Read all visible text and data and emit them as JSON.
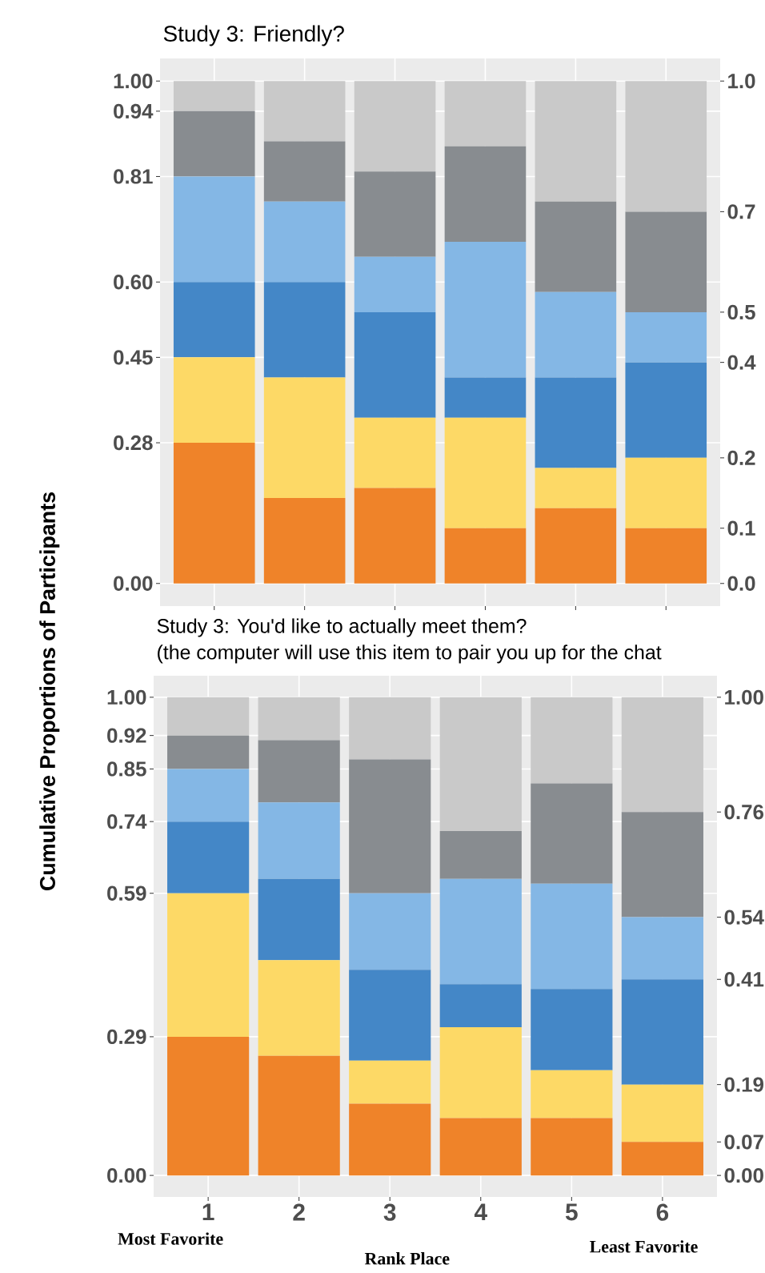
{
  "chart_data": [
    {
      "type": "bar",
      "stacked": true,
      "title": "Study 3: Friendly?",
      "categories": [
        "1",
        "2",
        "3",
        "4",
        "5",
        "6"
      ],
      "tick_labels": "y",
      "grid": true,
      "ylim": [
        -0.045,
        1.045
      ],
      "yticks": [
        {
          "value": 0,
          "label": "0.00"
        },
        {
          "value": 0.28,
          "label": "0.28"
        },
        {
          "value": 0.45,
          "label": "0.45"
        },
        {
          "value": 0.6,
          "label": "0.60"
        },
        {
          "value": 0.81,
          "label": "0.81"
        },
        {
          "value": 0.94,
          "label": "0.94"
        },
        {
          "value": 1,
          "label": "1.00"
        }
      ],
      "y2lim": [
        -0.045,
        1.045
      ],
      "y2ticks": [
        {
          "value": 0,
          "label": "0.0"
        },
        {
          "value": 0.11,
          "label": "0.1"
        },
        {
          "value": 0.25,
          "label": "0.2"
        },
        {
          "value": 0.44,
          "label": "0.4"
        },
        {
          "value": 0.54,
          "label": "0.5"
        },
        {
          "value": 0.74,
          "label": "0.7"
        },
        {
          "value": 1,
          "label": "1.0"
        }
      ],
      "series": [
        {
          "color": "#ef8329",
          "values": [
            0.28,
            0.17,
            0.19,
            0.11,
            0.15,
            0.11
          ]
        },
        {
          "color": "#fdd966",
          "values": [
            0.17,
            0.24,
            0.14,
            0.22,
            0.08,
            0.14
          ]
        },
        {
          "color": "#4487c7",
          "values": [
            0.15,
            0.19,
            0.21,
            0.08,
            0.18,
            0.19
          ]
        },
        {
          "color": "#84b7e5",
          "values": [
            0.21,
            0.16,
            0.11,
            0.27,
            0.17,
            0.1
          ]
        },
        {
          "color": "#888c90",
          "values": [
            0.13,
            0.12,
            0.17,
            0.19,
            0.18,
            0.2
          ]
        },
        {
          "color": "#c9c9c9",
          "values": [
            0.06,
            0.12,
            0.18,
            0.13,
            0.24,
            0.26
          ]
        }
      ]
    },
    {
      "type": "bar",
      "stacked": true,
      "title": "Study 3: You'd like to actually meet them?",
      "subtitle": "(the computer will use this item to pair you up for the chat",
      "xlabel": "Rank Place",
      "ylabel": "Cumulative Proportions of Participants",
      "annotations": [
        "Most Favorite",
        "Least Favorite"
      ],
      "categories": [
        "1",
        "2",
        "3",
        "4",
        "5",
        "6"
      ],
      "grid": true,
      "ylim": [
        -0.045,
        1.045
      ],
      "yticks": [
        {
          "value": 0,
          "label": "0.00"
        },
        {
          "value": 0.29,
          "label": "0.29"
        },
        {
          "value": 0.59,
          "label": "0.59"
        },
        {
          "value": 0.74,
          "label": "0.74"
        },
        {
          "value": 0.85,
          "label": "0.85"
        },
        {
          "value": 0.92,
          "label": "0.92"
        },
        {
          "value": 1,
          "label": "1.00"
        }
      ],
      "y2lim": [
        -0.045,
        1.045
      ],
      "y2ticks": [
        {
          "value": 0,
          "label": "0.00"
        },
        {
          "value": 0.07,
          "label": "0.07"
        },
        {
          "value": 0.19,
          "label": "0.19"
        },
        {
          "value": 0.41,
          "label": "0.41"
        },
        {
          "value": 0.54,
          "label": "0.54"
        },
        {
          "value": 0.76,
          "label": "0.76"
        },
        {
          "value": 1,
          "label": "1.00"
        }
      ],
      "series": [
        {
          "color": "#ef8329",
          "values": [
            0.29,
            0.25,
            0.15,
            0.12,
            0.12,
            0.07
          ]
        },
        {
          "color": "#fdd966",
          "values": [
            0.3,
            0.2,
            0.09,
            0.19,
            0.1,
            0.12
          ]
        },
        {
          "color": "#4487c7",
          "values": [
            0.15,
            0.17,
            0.19,
            0.09,
            0.17,
            0.22
          ]
        },
        {
          "color": "#84b7e5",
          "values": [
            0.11,
            0.16,
            0.16,
            0.22,
            0.22,
            0.13
          ]
        },
        {
          "color": "#888c90",
          "values": [
            0.07,
            0.13,
            0.28,
            0.1,
            0.21,
            0.22
          ]
        },
        {
          "color": "#c9c9c9",
          "values": [
            0.08,
            0.09,
            0.13,
            0.28,
            0.18,
            0.24
          ]
        }
      ]
    }
  ]
}
